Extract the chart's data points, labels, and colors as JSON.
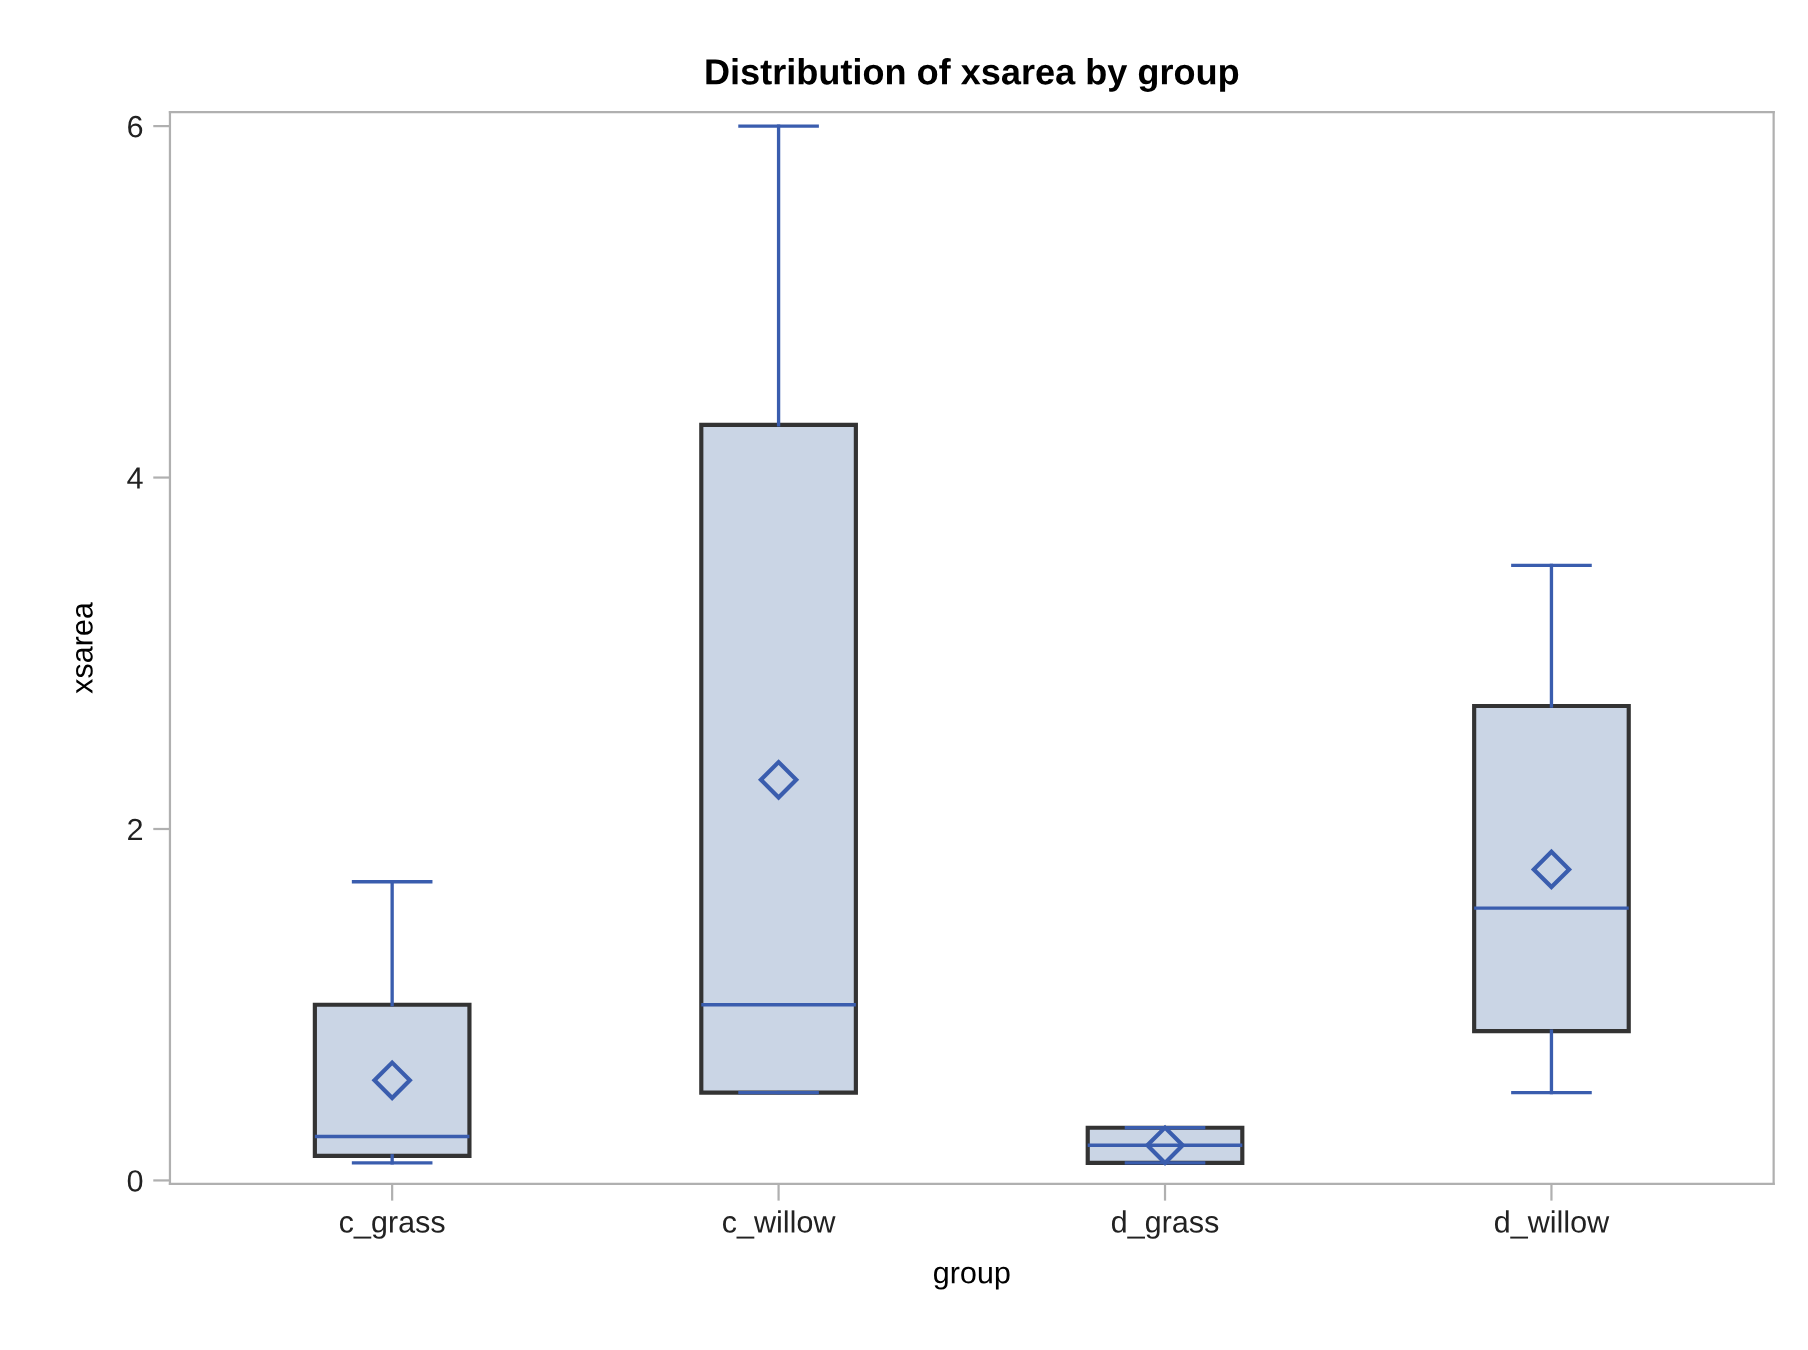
{
  "chart_data": {
    "type": "box",
    "title": "Distribution of xsarea by group",
    "xlabel": "group",
    "ylabel": "xsarea",
    "categories": [
      "c_grass",
      "c_willow",
      "d_grass",
      "d_willow"
    ],
    "boxes": [
      {
        "low": 0.1,
        "q1": 0.14,
        "median": 0.25,
        "q3": 1.0,
        "high": 1.7,
        "mean": 0.57
      },
      {
        "low": 0.5,
        "q1": 0.5,
        "median": 1.0,
        "q3": 4.3,
        "high": 6.0,
        "mean": 2.28
      },
      {
        "low": 0.1,
        "q1": 0.1,
        "median": 0.2,
        "q3": 0.3,
        "high": 0.3,
        "mean": 0.2
      },
      {
        "low": 0.5,
        "q1": 0.85,
        "median": 1.55,
        "q3": 2.7,
        "high": 3.5,
        "mean": 1.77
      }
    ],
    "color": "#cad5e5",
    "ylim": [
      -0.02,
      6.08
    ],
    "yticks": [
      0,
      2,
      4,
      6
    ],
    "grid": false,
    "marker": "diamond"
  }
}
